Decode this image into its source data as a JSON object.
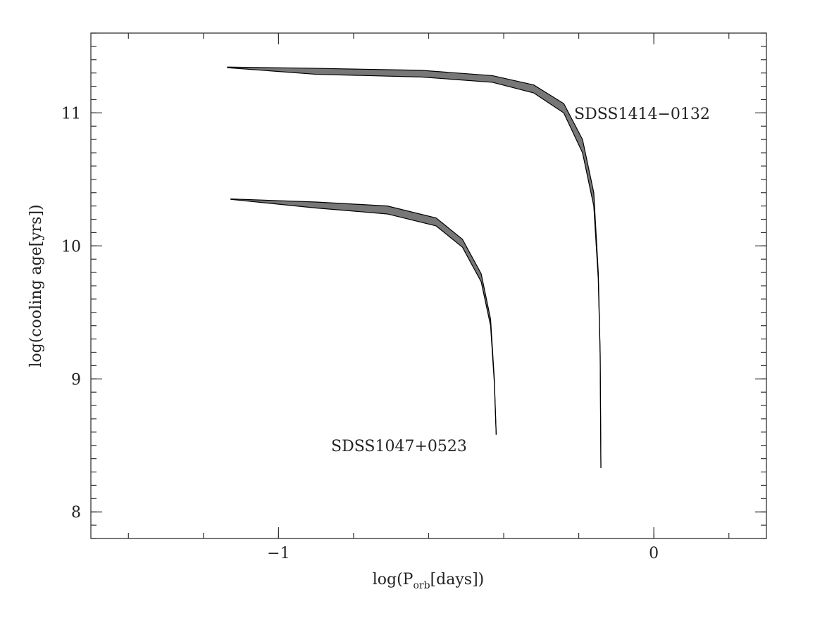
{
  "chart_data": {
    "type": "band",
    "xlabel": {
      "main": "log(P",
      "sub": "orb",
      "tail": "[days])"
    },
    "ylabel": "log(cooling age[yrs])",
    "xlim": [
      -1.5,
      0.3
    ],
    "ylim": [
      7.8,
      11.6
    ],
    "xticks": [
      {
        "value": -1,
        "label": "−1"
      },
      0
    ],
    "yticks": [
      8,
      9,
      10,
      11
    ],
    "xminorstep": 0.2,
    "yminorstep": 0.1,
    "color": "#777777",
    "series": [
      {
        "name": "SDSS1414−0132",
        "x": [
          -1.137,
          -0.9,
          -0.62,
          -0.43,
          -0.32,
          -0.24,
          -0.19,
          -0.16,
          -0.148,
          -0.143,
          -0.141
        ],
        "upper": [
          11.345,
          11.335,
          11.32,
          11.28,
          11.21,
          11.07,
          10.8,
          10.4,
          9.8,
          9.2,
          8.33
        ],
        "lower": [
          11.34,
          11.29,
          11.27,
          11.23,
          11.15,
          11.0,
          10.7,
          10.3,
          9.75,
          9.18,
          8.33
        ]
      },
      {
        "name": "SDSS1047+0523",
        "x": [
          -1.128,
          -0.9,
          -0.71,
          -0.58,
          -0.51,
          -0.46,
          -0.435,
          -0.425,
          -0.42
        ],
        "upper": [
          10.353,
          10.33,
          10.3,
          10.21,
          10.05,
          9.79,
          9.45,
          9.0,
          8.58
        ],
        "lower": [
          10.35,
          10.285,
          10.24,
          10.15,
          9.99,
          9.73,
          9.4,
          8.97,
          8.58
        ]
      }
    ]
  }
}
